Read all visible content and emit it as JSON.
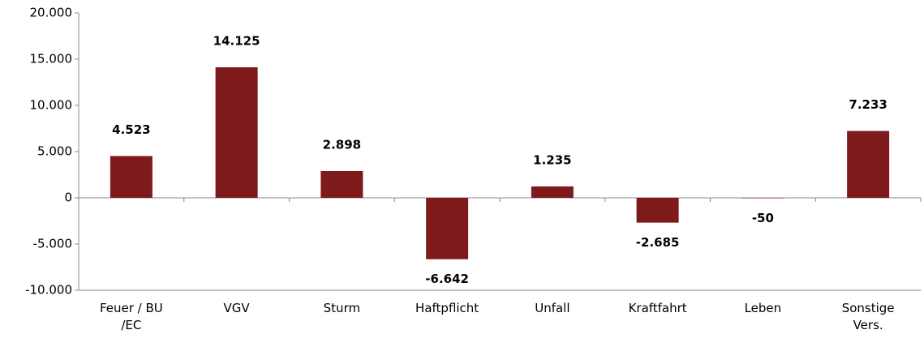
{
  "chart_data": {
    "type": "bar",
    "categories": [
      "Feuer / BU /EC",
      "VGV",
      "Sturm",
      "Haftpflicht",
      "Unfall",
      "Kraftfahrt",
      "Leben",
      "Sonstige Vers."
    ],
    "values": [
      4523,
      14125,
      2898,
      -6642,
      1235,
      -2685,
      -50,
      7233
    ],
    "value_labels": [
      "4.523",
      "14.125",
      "2.898",
      "-6.642",
      "1.235",
      "-2.685",
      "-50",
      "7.233"
    ],
    "color": "#7f1a1c",
    "ylim": [
      -10000,
      20000
    ],
    "yticks": [
      {
        "value": -10000,
        "label": "-10.000"
      },
      {
        "value": -5000,
        "label": "-5.000"
      },
      0,
      {
        "value": 5000,
        "label": "5.000"
      },
      {
        "value": 10000,
        "label": "10.000"
      },
      {
        "value": 15000,
        "label": "15.000"
      },
      {
        "value": 20000,
        "label": "20.000"
      }
    ],
    "grid": false
  }
}
